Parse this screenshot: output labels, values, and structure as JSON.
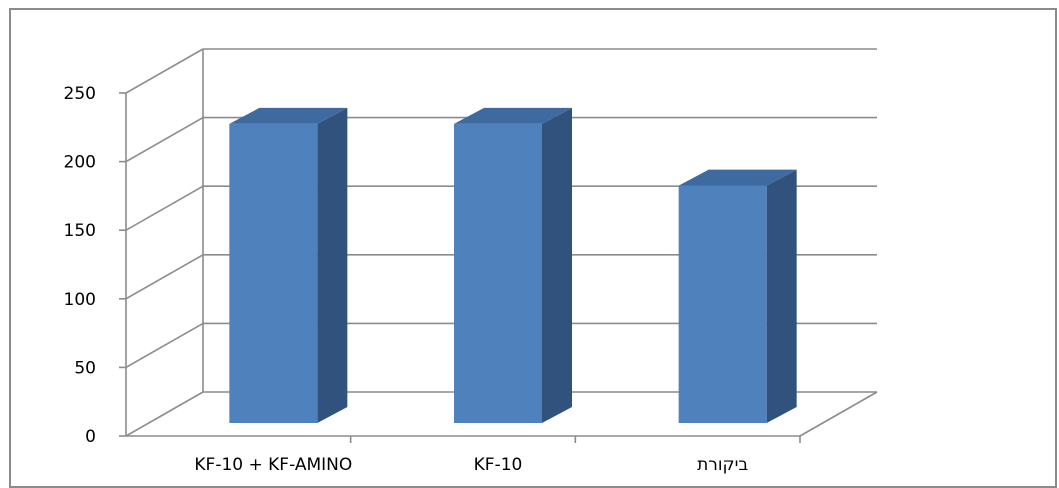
{
  "chart_data": {
    "type": "bar",
    "style": "3d-column",
    "categories": [
      "KF-10 + KF-AMINO",
      "KF-10",
      "ביקורת"
    ],
    "values": [
      218,
      218,
      173
    ],
    "ylim": [
      0,
      250
    ],
    "yticks": [
      0,
      50,
      100,
      150,
      200,
      250
    ],
    "ytick_labels": [
      "0",
      "50",
      "100",
      "150",
      "200",
      "250"
    ],
    "grid": true,
    "legend": "none",
    "title": "",
    "xlabel": "",
    "ylabel": "",
    "colors": {
      "bar_front": "#4f81bd",
      "bar_side": "#30527d",
      "bar_top": "#3f6aa0",
      "grid": "#8c8c8c",
      "frame": "#8c8c8c"
    }
  }
}
